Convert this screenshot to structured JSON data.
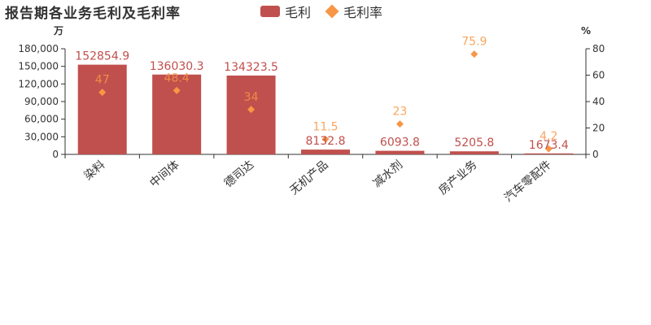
{
  "chart_data": {
    "type": "bar",
    "title": "报告期各业务毛利及毛利率",
    "categories": [
      "染料",
      "中间体",
      "德司达",
      "无机产品",
      "减水剂",
      "房产业务",
      "汽车零配件"
    ],
    "series": [
      {
        "name": "毛利",
        "type": "bar",
        "axis": "left",
        "color": "#c0504d",
        "values": [
          152854.9,
          136030.3,
          134323.5,
          8132.8,
          6093.8,
          5205.8,
          1673.4
        ]
      },
      {
        "name": "毛利率",
        "type": "scatter",
        "axis": "right",
        "color": "#f79646",
        "values": [
          47,
          48.4,
          34,
          11.5,
          23,
          75.9,
          4.2
        ]
      }
    ],
    "y_left": {
      "unit": "万",
      "min": 0,
      "max": 180000,
      "ticks": [
        0,
        30000,
        60000,
        90000,
        120000,
        150000,
        180000
      ],
      "tick_labels": [
        "0",
        "30,000",
        "60,000",
        "90,000",
        "120,000",
        "150,000",
        "180,000"
      ]
    },
    "y_right": {
      "unit": "%",
      "min": 0,
      "max": 80,
      "ticks": [
        0,
        20,
        40,
        60,
        80
      ],
      "tick_labels": [
        "0",
        "20",
        "40",
        "60",
        "80"
      ]
    },
    "legend": "top-center",
    "grid": false
  }
}
